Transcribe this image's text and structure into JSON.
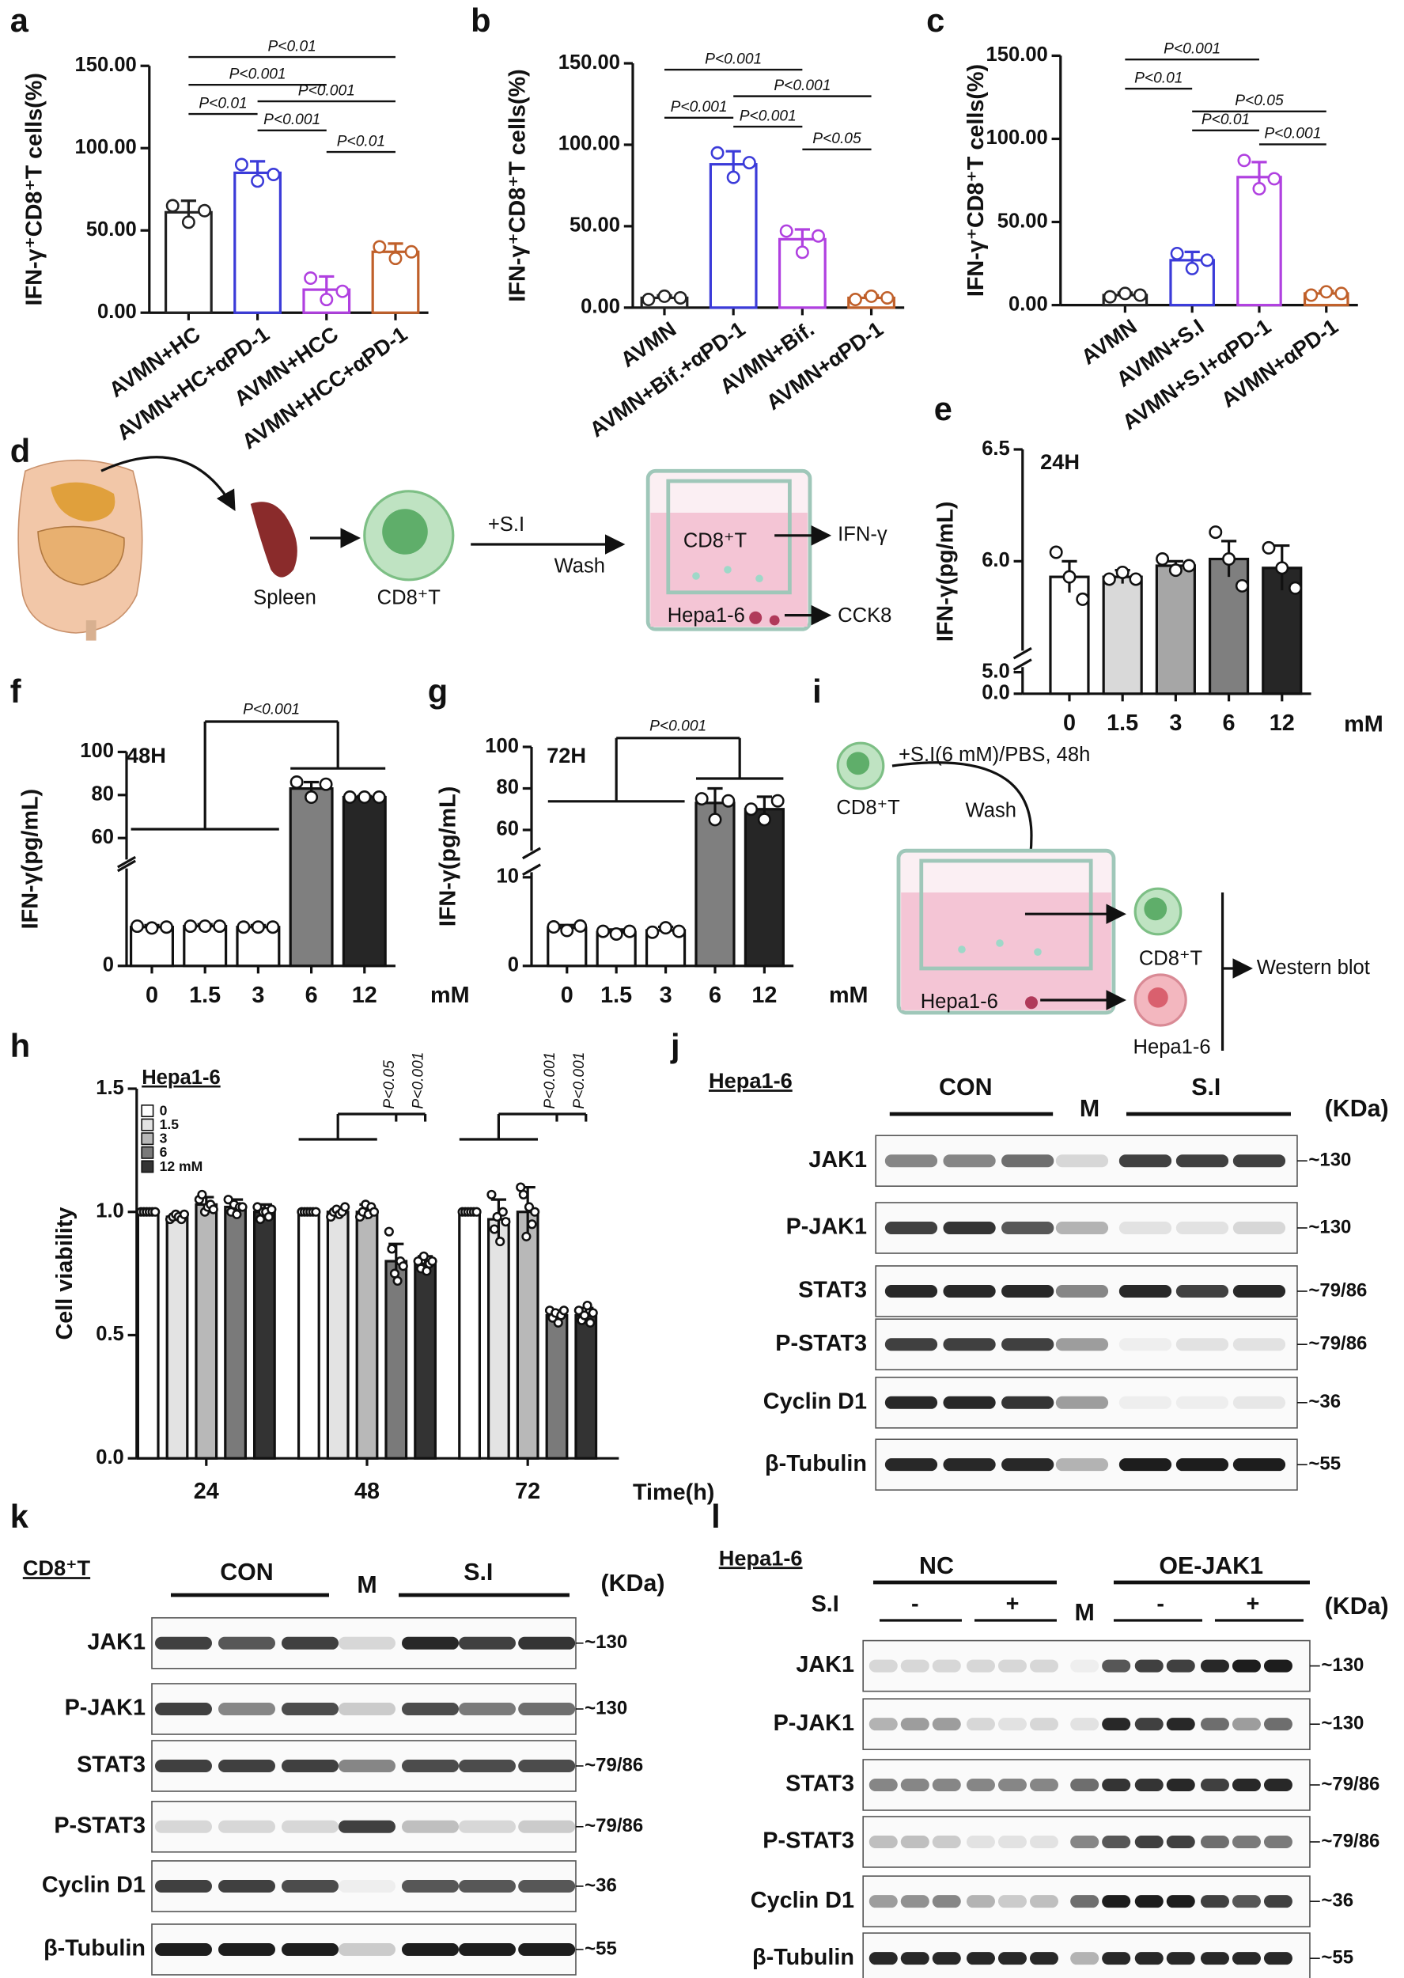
{
  "panel_labels": [
    "a",
    "b",
    "c",
    "d",
    "e",
    "f",
    "g",
    "h",
    "i",
    "j",
    "k",
    "l"
  ],
  "chart_data": [
    {
      "type": "bar",
      "ylabel": "IFN-γ⁺CD8⁺T cells(%)",
      "categories": [
        "AVMN+HC",
        "AVMN+HC+αPD-1",
        "AVMN+HCC",
        "AVMN+HCC+αPD-1"
      ],
      "colors": [
        "#222222",
        "#3b3bd9",
        "#b040e0",
        "#c0602a"
      ],
      "values": [
        61,
        85,
        14,
        37
      ],
      "errors": [
        7,
        7,
        8,
        5
      ],
      "points": [
        [
          65,
          55,
          62
        ],
        [
          90,
          80,
          84
        ],
        [
          21,
          8,
          13
        ],
        [
          40,
          33,
          37
        ]
      ],
      "ylim": [
        0,
        150
      ],
      "yticks": [
        {
          "value": 0,
          "label": "0.00"
        },
        {
          "value": 50,
          "label": "50.00"
        },
        {
          "value": 100,
          "label": "100.00"
        },
        {
          "value": 150,
          "label": "150.00"
        }
      ],
      "annotations": [
        {
          "text": "P<0.01",
          "between": [
            0,
            3
          ]
        },
        {
          "text": "P<0.001",
          "between": [
            0,
            2
          ]
        },
        {
          "text": "P<0.01",
          "between": [
            0,
            1
          ]
        },
        {
          "text": "P<0.001",
          "between": [
            1,
            3
          ]
        },
        {
          "text": "P<0.001",
          "between": [
            1,
            2
          ]
        },
        {
          "text": "P<0.01",
          "between": [
            2,
            3
          ]
        }
      ]
    },
    {
      "type": "bar",
      "ylabel": "IFN-γ⁺CD8⁺T cells(%)",
      "categories": [
        "AVMN",
        "AVMN+Bif.+αPD-1",
        "AVMN+Bif.",
        "AVMN+αPD-1"
      ],
      "colors": [
        "#222222",
        "#3b3bd9",
        "#b040e0",
        "#c0602a"
      ],
      "values": [
        6,
        88,
        42,
        6
      ],
      "errors": [
        1.5,
        8,
        6,
        1.5
      ],
      "points": [
        [
          5,
          7,
          6
        ],
        [
          95,
          80,
          89
        ],
        [
          47,
          34,
          44
        ],
        [
          5,
          7,
          6
        ]
      ],
      "ylim": [
        0,
        150
      ],
      "yticks": [
        {
          "value": 0,
          "label": "0.00"
        },
        {
          "value": 50,
          "label": "50.00"
        },
        {
          "value": 100,
          "label": "100.00"
        },
        {
          "value": 150,
          "label": "150.00"
        }
      ],
      "annotations": [
        {
          "text": "P<0.001",
          "between": [
            0,
            2
          ]
        },
        {
          "text": "P<0.001",
          "between": [
            1,
            3
          ]
        },
        {
          "text": "P<0.001",
          "between": [
            0,
            1
          ]
        },
        {
          "text": "P<0.001",
          "between": [
            1,
            2
          ]
        },
        {
          "text": "P<0.05",
          "between": [
            2,
            3
          ]
        }
      ]
    },
    {
      "type": "bar",
      "ylabel": "IFN-γ⁺CD8⁺T cells(%)",
      "categories": [
        "AVMN",
        "AVMN+S.I",
        "AVMN+S.I+αPD-1",
        "AVMN+αPD-1"
      ],
      "colors": [
        "#222222",
        "#3b3bd9",
        "#b040e0",
        "#c0602a"
      ],
      "values": [
        6,
        27,
        77,
        7
      ],
      "errors": [
        1.5,
        5,
        9,
        1.5
      ],
      "points": [
        [
          5,
          7,
          6
        ],
        [
          31,
          22,
          27
        ],
        [
          87,
          70,
          76
        ],
        [
          6,
          8,
          7
        ]
      ],
      "ylim": [
        0,
        150
      ],
      "yticks": [
        {
          "value": 0,
          "label": "0.00"
        },
        {
          "value": 50,
          "label": "50.00"
        },
        {
          "value": 100,
          "label": "100.00"
        },
        {
          "value": 150,
          "label": "150.00"
        }
      ],
      "annotations": [
        {
          "text": "P<0.001",
          "between": [
            0,
            2
          ]
        },
        {
          "text": "P<0.01",
          "between": [
            0,
            1
          ]
        },
        {
          "text": "P<0.05",
          "between": [
            1,
            3
          ]
        },
        {
          "text": "P<0.01",
          "between": [
            1,
            2
          ]
        },
        {
          "text": "P<0.001",
          "between": [
            2,
            3
          ]
        }
      ]
    },
    {
      "type": "broken_bar",
      "title": "24H",
      "ylabel": "IFN-γ(pg/mL)",
      "xlabel": "mM",
      "categories": [
        "0",
        "1.5",
        "3",
        "6",
        "12"
      ],
      "colors": [
        "#ffffff",
        "#d9d9d9",
        "#a6a6a6",
        "#7f7f7f",
        "#262626"
      ],
      "values": [
        5.93,
        5.93,
        5.98,
        6.01,
        5.97
      ],
      "errors": [
        0.07,
        0.03,
        0.02,
        0.08,
        0.1
      ],
      "points": [
        [
          6.04,
          5.93,
          5.83
        ],
        [
          5.92,
          5.95,
          5.92
        ],
        [
          6.01,
          5.96,
          5.98
        ],
        [
          6.13,
          6.01,
          5.89
        ],
        [
          6.06,
          5.97,
          5.88
        ]
      ],
      "ylim": [
        0,
        6.5
      ],
      "ybreak": [
        5,
        5.6
      ],
      "yticks": [
        {
          "value": 0,
          "label": "0.0"
        },
        {
          "value": 5,
          "label": "5.0"
        },
        {
          "value": 6,
          "label": "6.0"
        },
        {
          "value": 6.5,
          "label": "6.5"
        }
      ],
      "annotations": []
    },
    {
      "type": "broken_bar",
      "title": "48H",
      "ylabel": "IFN-γ(pg/mL)",
      "xlabel": "mM",
      "categories": [
        "0",
        "1.5",
        "3",
        "6",
        "12"
      ],
      "colors": [
        "#ffffff",
        "#ffffff",
        "#ffffff",
        "#7f7f7f",
        "#262626"
      ],
      "values": [
        4.2,
        4.3,
        4.2,
        83,
        79
      ],
      "errors": [
        0.2,
        0.2,
        0.2,
        3,
        0.5
      ],
      "points": [
        [
          4.3,
          4.1,
          4.2
        ],
        [
          4.3,
          4.3,
          4.3
        ],
        [
          4.2,
          4.2,
          4.2
        ],
        [
          86,
          79,
          85
        ],
        [
          79,
          79,
          79
        ]
      ],
      "ylim": [
        0,
        100
      ],
      "ybreak": [
        10,
        50
      ],
      "yticks": [
        0,
        60,
        80,
        100
      ],
      "annotations": [
        {
          "text": "P<0.001",
          "groups": [
            [
              0,
              2
            ],
            [
              3,
              4
            ]
          ]
        }
      ]
    },
    {
      "type": "broken_bar",
      "title": "72H",
      "ylabel": "IFN-γ(pg/mL)",
      "xlabel": "mM",
      "categories": [
        "0",
        "1.5",
        "3",
        "6",
        "12"
      ],
      "colors": [
        "#ffffff",
        "#ffffff",
        "#ffffff",
        "#7f7f7f",
        "#262626"
      ],
      "values": [
        4.3,
        3.8,
        4.0,
        73,
        70
      ],
      "errors": [
        0.3,
        0.3,
        0.4,
        7,
        6
      ],
      "points": [
        [
          4.4,
          4.0,
          4.5
        ],
        [
          3.9,
          3.6,
          3.9
        ],
        [
          3.8,
          4.3,
          3.9
        ],
        [
          75,
          65,
          74
        ],
        [
          70,
          65,
          74
        ]
      ],
      "ylim": [
        0,
        100
      ],
      "ybreak": [
        10,
        50
      ],
      "yticks": [
        0,
        10,
        60,
        80,
        100
      ],
      "annotations": [
        {
          "text": "P<0.001",
          "groups": [
            [
              0,
              2
            ],
            [
              3,
              4
            ]
          ]
        }
      ]
    },
    {
      "type": "grouped_bar",
      "ylabel": "Cell viability",
      "xlabel": "Time(h)",
      "legend_title": "Hepa1-6",
      "categories": [
        "24",
        "48",
        "72"
      ],
      "series": [
        {
          "name": "0",
          "color": "#ffffff",
          "values": [
            1.0,
            1.0,
            1.0
          ],
          "errors": [
            0.005,
            0.005,
            0.01
          ],
          "points": [
            [
              1,
              1,
              1,
              1,
              1,
              1
            ],
            [
              1,
              1,
              1,
              1,
              1,
              1
            ],
            [
              1,
              1,
              1,
              1,
              1,
              1
            ]
          ]
        },
        {
          "name": "1.5",
          "color": "#e3e3e3",
          "values": [
            0.98,
            1.0,
            0.97
          ],
          "errors": [
            0.01,
            0.01,
            0.08
          ],
          "points": [
            [
              0.97,
              0.98,
              0.99,
              0.98,
              0.97,
              0.99
            ],
            [
              0.98,
              1.0,
              1.01,
              0.99,
              1.0,
              1.02
            ],
            [
              1.07,
              0.93,
              0.98,
              0.88,
              1.0,
              0.96
            ]
          ]
        },
        {
          "name": "3",
          "color": "#b8b8b8",
          "values": [
            1.03,
            1.0,
            1.0
          ],
          "errors": [
            0.03,
            0.03,
            0.1
          ],
          "points": [
            [
              1.05,
              1.07,
              1.0,
              1.02,
              1.03,
              1.01
            ],
            [
              0.98,
              1.0,
              1.03,
              0.99,
              1.02,
              1.0
            ],
            [
              1.1,
              1.07,
              0.9,
              1.02,
              0.95,
              1.0
            ]
          ]
        },
        {
          "name": "6",
          "color": "#7a7a7a",
          "values": [
            1.02,
            0.8,
            0.58
          ],
          "errors": [
            0.03,
            0.07,
            0.02
          ],
          "points": [
            [
              1.05,
              1.0,
              1.03,
              0.99,
              1.02,
              1.02
            ],
            [
              0.92,
              0.85,
              0.75,
              0.72,
              0.8,
              0.78
            ],
            [
              0.6,
              0.57,
              0.59,
              0.55,
              0.58,
              0.6
            ]
          ]
        },
        {
          "name": "12 mM",
          "color": "#333333",
          "values": [
            1.0,
            0.79,
            0.58
          ],
          "errors": [
            0.03,
            0.03,
            0.03
          ],
          "points": [
            [
              1.02,
              0.97,
              1.0,
              1.0,
              0.98,
              1.01
            ],
            [
              0.8,
              0.77,
              0.82,
              0.76,
              0.79,
              0.8
            ],
            [
              0.6,
              0.56,
              0.58,
              0.62,
              0.55,
              0.59
            ]
          ]
        }
      ],
      "ylim": [
        0,
        1.5
      ],
      "yticks": [
        {
          "value": 0,
          "label": "0.0"
        },
        {
          "value": 0.5,
          "label": "0.5"
        },
        {
          "value": 1,
          "label": "1.0"
        },
        {
          "value": 1.5,
          "label": "1.5"
        }
      ],
      "annotations": [
        {
          "text": "P<0.05",
          "category": 1,
          "series": 3
        },
        {
          "text": "P<0.001",
          "category": 1,
          "series": 4
        },
        {
          "text": "P<0.001",
          "category": 2,
          "series": 3
        },
        {
          "text": "P<0.001",
          "category": 2,
          "series": 4
        }
      ]
    }
  ],
  "diagrams": [
    {
      "labels": [
        "Spleen",
        "CD8⁺T",
        "+S.I",
        "Wash",
        "CD8⁺T",
        "IFN-γ",
        "Hepa1-6",
        "CCK8"
      ]
    },
    {
      "labels": [
        "+S.I(6 mM)/PBS, 48h",
        "CD8⁺T",
        "Wash",
        "Hepa1-6",
        "CD8⁺T",
        "Hepa1-6",
        "Western blot"
      ]
    }
  ],
  "blots": [
    {
      "title": "Hepa1-6",
      "headers": [
        "CON",
        "M",
        "S.I"
      ],
      "unit": "(KDa)",
      "rows": [
        {
          "label": "JAK1",
          "size": "~130"
        },
        {
          "label": "P-JAK1",
          "size": "~130"
        },
        {
          "label": "STAT3",
          "size": "~79/86"
        },
        {
          "label": "P-STAT3",
          "size": "~79/86"
        },
        {
          "label": "Cyclin D1",
          "size": "~36"
        },
        {
          "label": "β-Tubulin",
          "size": "~55"
        }
      ]
    },
    {
      "title": "CD8⁺T",
      "headers": [
        "CON",
        "M",
        "S.I"
      ],
      "unit": "(KDa)",
      "rows": [
        {
          "label": "JAK1",
          "size": "~130"
        },
        {
          "label": "P-JAK1",
          "size": "~130"
        },
        {
          "label": "STAT3",
          "size": "~79/86"
        },
        {
          "label": "P-STAT3",
          "size": "~79/86"
        },
        {
          "label": "Cyclin D1",
          "size": "~36"
        },
        {
          "label": "β-Tubulin",
          "size": "~55"
        }
      ]
    },
    {
      "title": "Hepa1-6",
      "headers": [
        "NC",
        "OE-JAK1",
        "M"
      ],
      "treatment_label": "S.I",
      "treatment": [
        "-",
        "+",
        "-",
        "+"
      ],
      "unit": "(KDa)",
      "rows": [
        {
          "label": "JAK1",
          "size": "~130"
        },
        {
          "label": "P-JAK1",
          "size": "~130"
        },
        {
          "label": "STAT3",
          "size": "~79/86"
        },
        {
          "label": "P-STAT3",
          "size": "~79/86"
        },
        {
          "label": "Cyclin D1",
          "size": "~36"
        },
        {
          "label": "β-Tubulin",
          "size": "~55"
        }
      ]
    }
  ]
}
